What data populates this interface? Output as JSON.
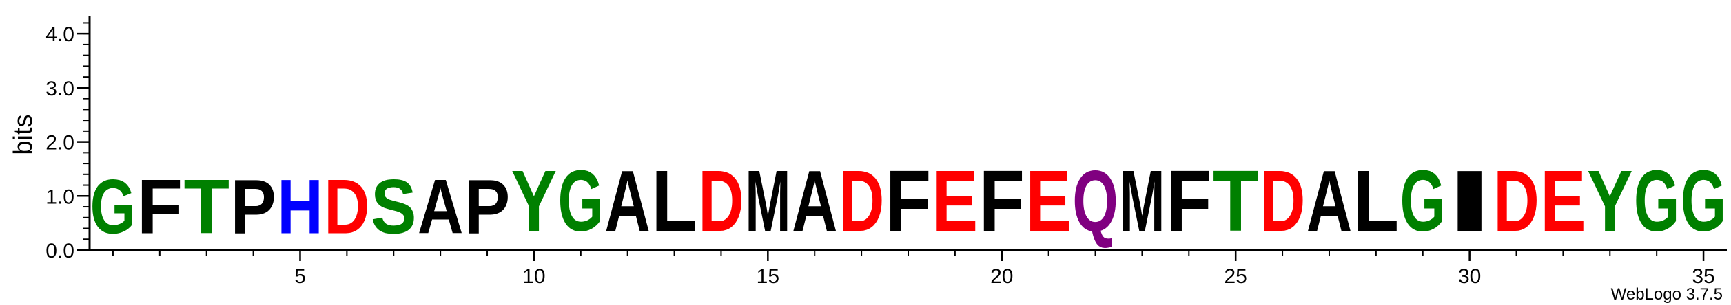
{
  "chart_data": {
    "type": "sequence-logo",
    "ylabel": "bits",
    "ylim": [
      0,
      4.32
    ],
    "y_ticks": [
      {
        "value": 0.0,
        "label": "0.0"
      },
      {
        "value": 1.0,
        "label": "1.0"
      },
      {
        "value": 2.0,
        "label": "2.0"
      },
      {
        "value": 3.0,
        "label": "3.0"
      },
      {
        "value": 4.0,
        "label": "4.0"
      }
    ],
    "y_minor_step": 0.2,
    "x_ticks": [
      {
        "value": 5,
        "label": "5"
      },
      {
        "value": 10,
        "label": "10"
      },
      {
        "value": 15,
        "label": "15"
      },
      {
        "value": 20,
        "label": "20"
      },
      {
        "value": 25,
        "label": "25"
      },
      {
        "value": 30,
        "label": "30"
      },
      {
        "value": 35,
        "label": "35"
      }
    ],
    "positions": [
      {
        "pos": 1,
        "letter": "G",
        "bits": 1.6
      },
      {
        "pos": 2,
        "letter": "F",
        "bits": 1.6
      },
      {
        "pos": 3,
        "letter": "T",
        "bits": 1.6
      },
      {
        "pos": 4,
        "letter": "P",
        "bits": 1.6
      },
      {
        "pos": 5,
        "letter": "H",
        "bits": 1.6
      },
      {
        "pos": 6,
        "letter": "D",
        "bits": 1.6
      },
      {
        "pos": 7,
        "letter": "S",
        "bits": 1.6
      },
      {
        "pos": 8,
        "letter": "A",
        "bits": 1.6
      },
      {
        "pos": 9,
        "letter": "P",
        "bits": 1.6
      },
      {
        "pos": 10,
        "letter": "Y",
        "bits": 1.8
      },
      {
        "pos": 11,
        "letter": "G",
        "bits": 1.8
      },
      {
        "pos": 12,
        "letter": "A",
        "bits": 1.8
      },
      {
        "pos": 13,
        "letter": "L",
        "bits": 1.8
      },
      {
        "pos": 14,
        "letter": "D",
        "bits": 1.8
      },
      {
        "pos": 15,
        "letter": "M",
        "bits": 1.8
      },
      {
        "pos": 16,
        "letter": "A",
        "bits": 1.8
      },
      {
        "pos": 17,
        "letter": "D",
        "bits": 1.8
      },
      {
        "pos": 18,
        "letter": "F",
        "bits": 1.8
      },
      {
        "pos": 19,
        "letter": "E",
        "bits": 1.8
      },
      {
        "pos": 20,
        "letter": "F",
        "bits": 1.8
      },
      {
        "pos": 21,
        "letter": "E",
        "bits": 1.8
      },
      {
        "pos": 22,
        "letter": "Q",
        "bits": 1.8
      },
      {
        "pos": 23,
        "letter": "M",
        "bits": 1.8
      },
      {
        "pos": 24,
        "letter": "F",
        "bits": 1.8
      },
      {
        "pos": 25,
        "letter": "T",
        "bits": 1.8
      },
      {
        "pos": 26,
        "letter": "D",
        "bits": 1.8
      },
      {
        "pos": 27,
        "letter": "A",
        "bits": 1.8
      },
      {
        "pos": 28,
        "letter": "L",
        "bits": 1.8
      },
      {
        "pos": 29,
        "letter": "G",
        "bits": 1.8
      },
      {
        "pos": 30,
        "letter": "I",
        "bits": 1.8
      },
      {
        "pos": 31,
        "letter": "D",
        "bits": 1.8
      },
      {
        "pos": 32,
        "letter": "E",
        "bits": 1.8
      },
      {
        "pos": 33,
        "letter": "Y",
        "bits": 1.8
      },
      {
        "pos": 34,
        "letter": "G",
        "bits": 1.8
      },
      {
        "pos": 35,
        "letter": "G",
        "bits": 1.8
      }
    ],
    "colors": {
      "G": "#008000",
      "S": "#008000",
      "T": "#008000",
      "Y": "#008000",
      "C": "#008000",
      "N": "#800080",
      "Q": "#800080",
      "K": "#0000ff",
      "R": "#0000ff",
      "H": "#0000ff",
      "D": "#ff0000",
      "E": "#ff0000",
      "A": "#000000",
      "V": "#000000",
      "L": "#000000",
      "I": "#000000",
      "P": "#000000",
      "W": "#000000",
      "F": "#000000",
      "M": "#000000"
    }
  },
  "footer": {
    "credit": "WebLogo 3.7.5"
  }
}
